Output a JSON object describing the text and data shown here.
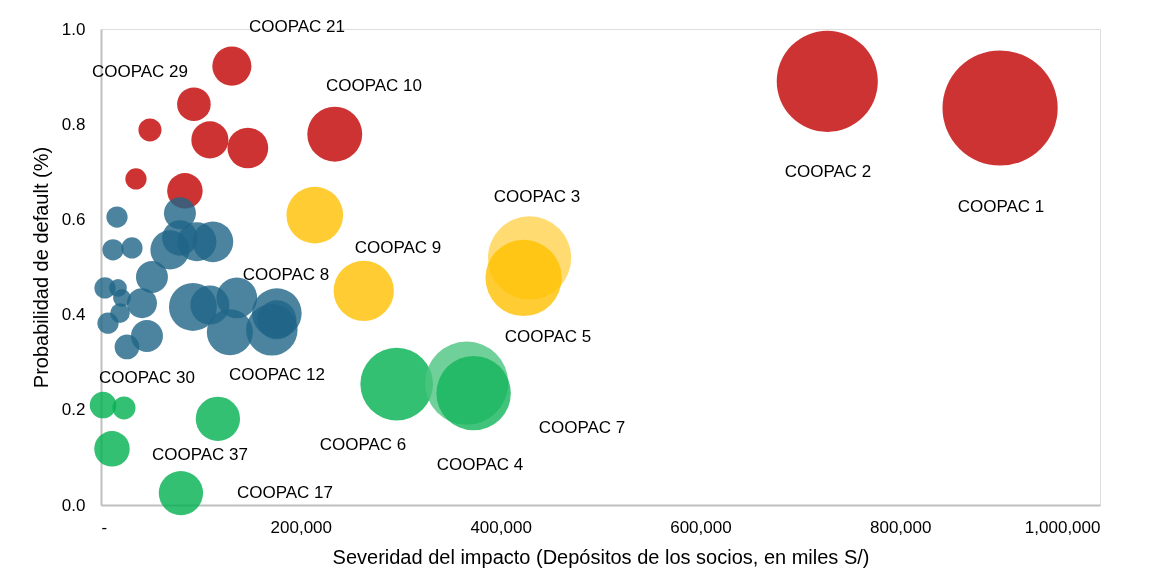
{
  "chart_data": {
    "type": "bubble",
    "xlabel": "Severidad del impacto (Depósitos de los socios, en miles S/)",
    "ylabel": "Probabilidad de default (%)",
    "xlim": [
      0,
      1000000
    ],
    "xticks": [
      {
        "value": 0,
        "label": "-"
      },
      {
        "value": 200000,
        "label": "200,000"
      },
      {
        "value": 400000,
        "label": "400,000"
      },
      {
        "value": 600000,
        "label": "600,000"
      },
      {
        "value": 800000,
        "label": "800,000"
      },
      {
        "value": 1000000,
        "label": "1,000,000"
      }
    ],
    "ylim": [
      0,
      1
    ],
    "yticks": [
      {
        "value": 0,
        "label": "0.0"
      },
      {
        "value": 0.2,
        "label": "0.2"
      },
      {
        "value": 0.4,
        "label": "0.4"
      },
      {
        "value": 0.6,
        "label": "0.6"
      },
      {
        "value": 0.8,
        "label": "0.8"
      },
      {
        "value": 1,
        "label": "1.0"
      }
    ],
    "grid": false,
    "x": [
      900000,
      727000,
      131000,
      234000,
      93000,
      49000,
      109000,
      147000,
      35000,
      84000,
      214000,
      263000,
      429000,
      423000,
      296000,
      366000,
      373000,
      117000,
      80000,
      2000,
      23000,
      11000,
      16000,
      79000,
      79000,
      96000,
      112000,
      69000,
      12000,
      31000,
      51000,
      4000,
      17000,
      21000,
      41000,
      19000,
      7000,
      26000,
      46000,
      92000,
      109000,
      136000,
      129000,
      176000,
      171000,
      176000
    ],
    "values": [
      0.834,
      0.89,
      0.922,
      0.779,
      0.842,
      0.788,
      0.767,
      0.75,
      0.685,
      0.66,
      0.609,
      0.45,
      0.519,
      0.477,
      0.254,
      0.256,
      0.235,
      0.181,
      0.025,
      0.21,
      0.204,
      0.118,
      0.605,
      0.613,
      0.561,
      0.553,
      0.553,
      0.536,
      0.536,
      0.54,
      0.479,
      0.456,
      0.456,
      0.435,
      0.424,
      0.403,
      0.382,
      0.332,
      0.355,
      0.416,
      0.42,
      0.435,
      0.363,
      0.403,
      0.368,
      0.389
    ],
    "sizes": [
      1,
      0.77,
      0.115,
      0.227,
      0.085,
      0.04,
      0.104,
      0.125,
      0.034,
      0.095,
      0.242,
      0.274,
      0.523,
      0.438,
      0.398,
      0.523,
      0.417,
      0.148,
      0.148,
      0.053,
      0.04,
      0.095,
      0.034,
      0.077,
      0.095,
      0.115,
      0.125,
      0.115,
      0.034,
      0.034,
      0.077,
      0.034,
      0.024,
      0.024,
      0.068,
      0.029,
      0.034,
      0.046,
      0.077,
      0.173,
      0.115,
      0.125,
      0.16,
      0.186,
      0.2,
      0.115
    ],
    "colors": [
      "#c00000",
      "#c00000",
      "#c00000",
      "#c00000",
      "#c00000",
      "#c00000",
      "#c00000",
      "#c00000",
      "#c00000",
      "#c00000",
      "#ffc000",
      "#ffc000",
      "#ffd24d",
      "#ffc000",
      "#00b050",
      "#4cc47f",
      "#13b45a",
      "#00b050",
      "#00b050",
      "#00b050",
      "#00b050",
      "#00b050",
      "#1f6587",
      "#1f6587",
      "#1f6587",
      "#1f6587",
      "#1f6587",
      "#1f6587",
      "#1f6587",
      "#1f6587",
      "#1f6587",
      "#1f6587",
      "#1f6587",
      "#1f6587",
      "#1f6587",
      "#1f6587",
      "#1f6587",
      "#1f6587",
      "#1f6587",
      "#1f6587",
      "#1f6587",
      "#1f6587",
      "#1f6587",
      "#1f6587",
      "#1f6587",
      "#1f6587"
    ],
    "annotations": [
      "COOPAC 21",
      "COOPAC 29",
      "COOPAC 10",
      "COOPAC 2",
      "COOPAC 1",
      "COOPAC 3",
      "COOPAC 9",
      "COOPAC 8",
      "COOPAC 5",
      "COOPAC 12",
      "COOPAC 30",
      "COOPAC 7",
      "COOPAC 6",
      "COOPAC 4",
      "COOPAC 37",
      "COOPAC 17"
    ]
  }
}
